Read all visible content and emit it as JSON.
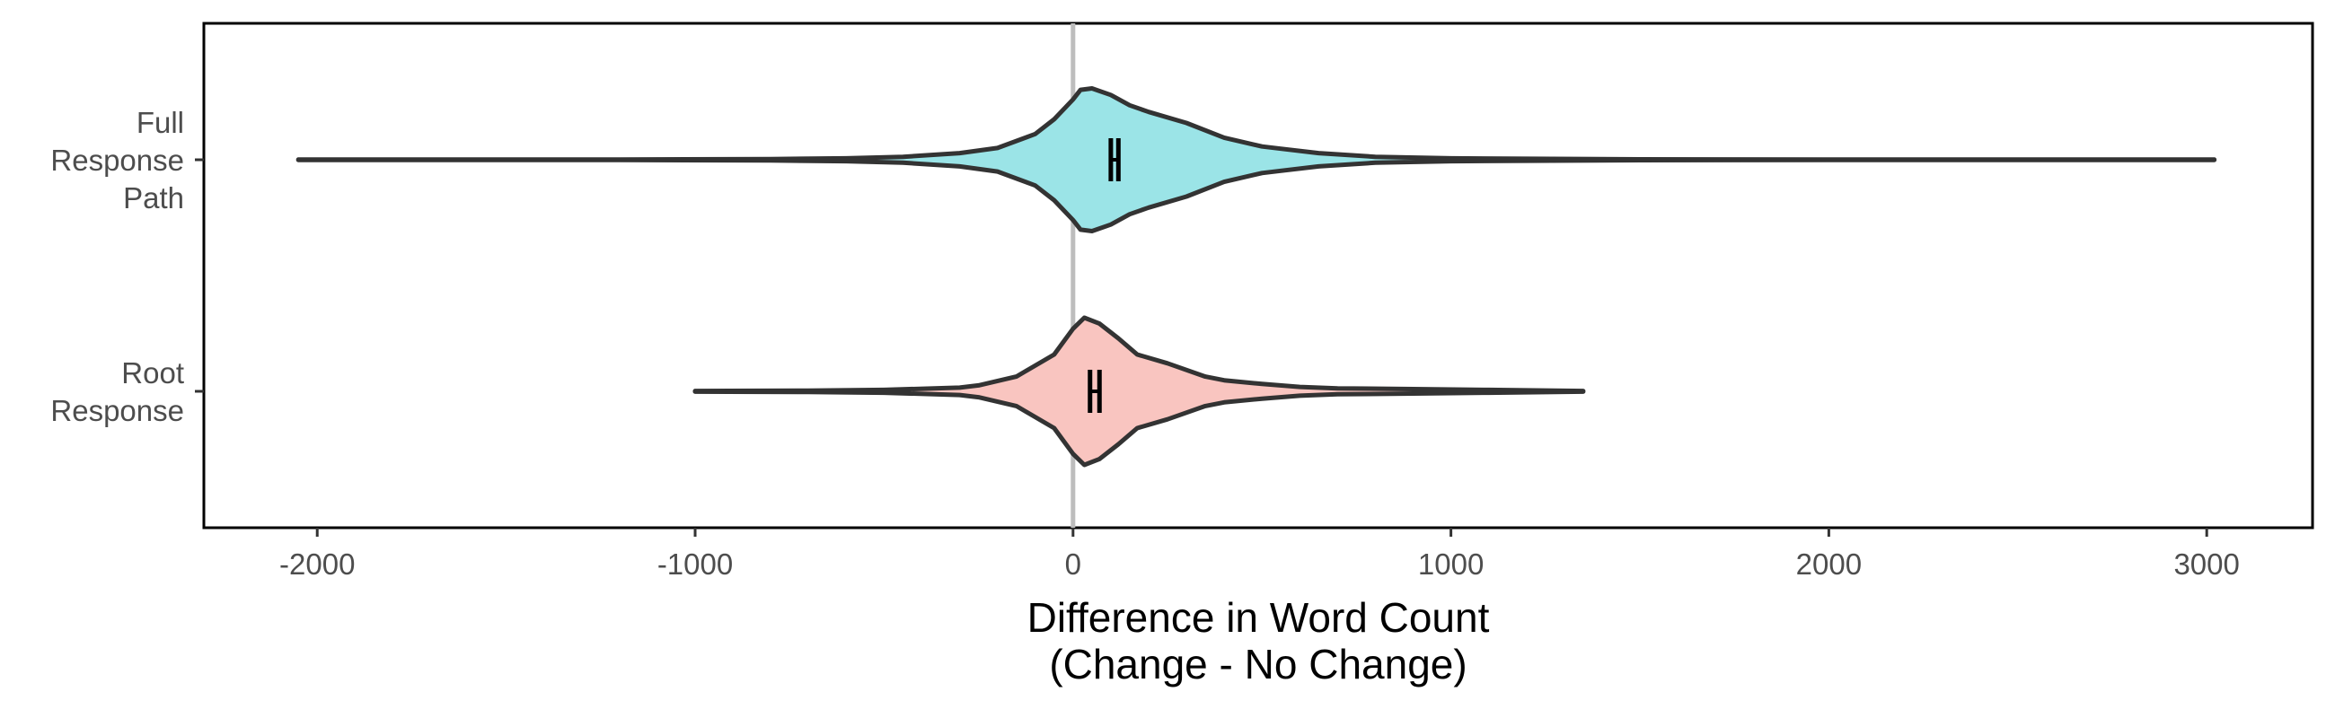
{
  "chart_data": {
    "type": "violin",
    "orientation": "horizontal",
    "title": "",
    "xlabel_lines": [
      "Difference in Word Count",
      "(Change - No Change)"
    ],
    "ylabel": "",
    "xlim": [
      -2300,
      3280
    ],
    "x_ticks": [
      -2000,
      -1000,
      0,
      1000,
      2000,
      3000
    ],
    "x_tick_labels": [
      "-2000",
      "-1000",
      "0",
      "1000",
      "2000",
      "3000"
    ],
    "reference_line_x": 0,
    "grid": false,
    "legend": "none",
    "categories": [
      {
        "label_lines": [
          "Full",
          "Response",
          "Path"
        ],
        "fill": "#9be4e7",
        "min": -2050,
        "max": 3020,
        "interval": [
          100,
          120
        ],
        "density": [
          [
            -2050,
            0.002
          ],
          [
            -1200,
            0.003
          ],
          [
            -800,
            0.01
          ],
          [
            -600,
            0.02
          ],
          [
            -450,
            0.04
          ],
          [
            -300,
            0.09
          ],
          [
            -200,
            0.16
          ],
          [
            -100,
            0.35
          ],
          [
            -50,
            0.55
          ],
          [
            0,
            0.82
          ],
          [
            20,
            0.95
          ],
          [
            50,
            0.97
          ],
          [
            100,
            0.88
          ],
          [
            150,
            0.74
          ],
          [
            200,
            0.65
          ],
          [
            300,
            0.5
          ],
          [
            400,
            0.3
          ],
          [
            500,
            0.18
          ],
          [
            550,
            0.15
          ],
          [
            650,
            0.09
          ],
          [
            800,
            0.04
          ],
          [
            1000,
            0.02
          ],
          [
            1500,
            0.006
          ],
          [
            2000,
            0.003
          ],
          [
            3020,
            0.002
          ]
        ]
      },
      {
        "label_lines": [
          "Root",
          "Response"
        ],
        "fill": "#f9c5c0",
        "min": -1000,
        "max": 1350,
        "interval": [
          45,
          70
        ],
        "density": [
          [
            -1000,
            0.005
          ],
          [
            -700,
            0.01
          ],
          [
            -500,
            0.02
          ],
          [
            -300,
            0.05
          ],
          [
            -250,
            0.08
          ],
          [
            -150,
            0.2
          ],
          [
            -50,
            0.5
          ],
          [
            0,
            0.85
          ],
          [
            30,
            1.0
          ],
          [
            70,
            0.92
          ],
          [
            120,
            0.72
          ],
          [
            170,
            0.5
          ],
          [
            250,
            0.38
          ],
          [
            350,
            0.2
          ],
          [
            400,
            0.15
          ],
          [
            500,
            0.1
          ],
          [
            600,
            0.06
          ],
          [
            700,
            0.04
          ],
          [
            900,
            0.03
          ],
          [
            1100,
            0.02
          ],
          [
            1350,
            0.005
          ]
        ]
      }
    ]
  }
}
